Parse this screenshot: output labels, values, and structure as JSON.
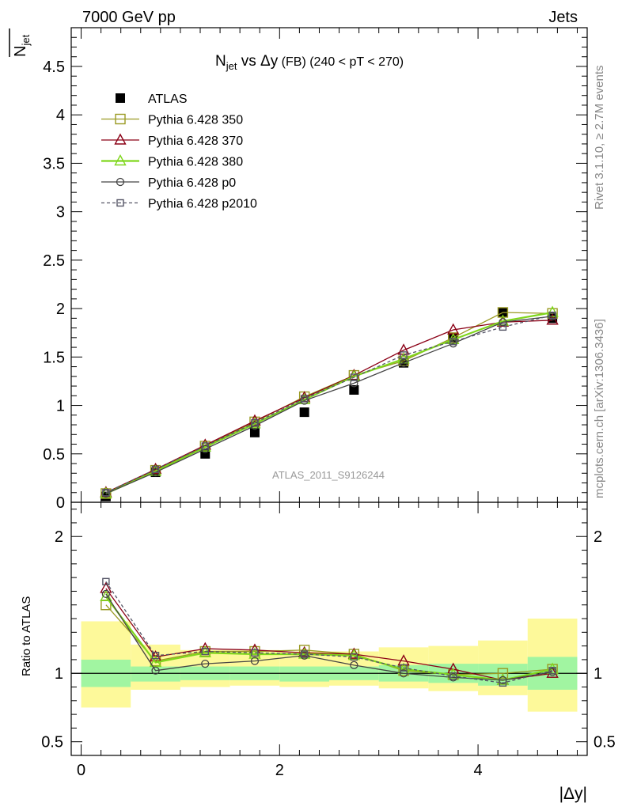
{
  "header": {
    "left": "7000 GeV pp",
    "right": "Jets"
  },
  "side_labels": {
    "top": "Rivet 3.1.10, ≥ 2.7M events",
    "bottom": "mcplots.cern.ch [arXiv:1306.3436]"
  },
  "chart_data": [
    {
      "type": "line",
      "title": {
        "main": "N",
        "sub": "jet",
        "rest": " vs Δy",
        "small": " (FB)",
        "range": " (240 < pT < 270)"
      },
      "ylabel": {
        "main": "N",
        "sub": "jet"
      },
      "watermark": "ATLAS_2011_S9126244",
      "xlim": [
        -0.1,
        5.1
      ],
      "ylim": [
        0,
        4.9
      ],
      "yticks": [
        "0",
        "0.5",
        "1",
        "1.5",
        "2",
        "2.5",
        "3",
        "3.5",
        "4",
        "4.5"
      ],
      "x": [
        0.25,
        0.75,
        1.25,
        1.75,
        2.25,
        2.75,
        3.25,
        3.75,
        4.25,
        4.75
      ],
      "series": [
        {
          "name": "ATLAS",
          "color": "#000000",
          "marker": "filled-square",
          "values": [
            0.06,
            0.31,
            0.5,
            0.72,
            0.93,
            1.16,
            1.44,
            1.7,
            1.96,
            1.9
          ]
        },
        {
          "name": "Pythia 6.428 350",
          "color": "#9a9a22",
          "marker": "open-square",
          "values": [
            0.09,
            0.33,
            0.58,
            0.83,
            1.09,
            1.31,
            1.46,
            1.7,
            1.96,
            1.95
          ]
        },
        {
          "name": "Pythia 6.428 370",
          "color": "#8b0016",
          "marker": "open-triangle",
          "values": [
            0.1,
            0.34,
            0.59,
            0.84,
            1.08,
            1.31,
            1.57,
            1.78,
            1.86,
            1.88
          ]
        },
        {
          "name": "Pythia 6.428 380",
          "color": "#7fd61c",
          "marker": "open-triangle",
          "values": [
            0.09,
            0.32,
            0.57,
            0.81,
            1.06,
            1.3,
            1.48,
            1.68,
            1.87,
            1.96
          ]
        },
        {
          "name": "Pythia 6.428 p0",
          "color": "#444444",
          "marker": "open-circle",
          "values": [
            0.09,
            0.31,
            0.55,
            0.79,
            1.05,
            1.23,
            1.44,
            1.64,
            1.86,
            1.92
          ]
        },
        {
          "name": "Pythia 6.428 p2010",
          "color": "#555566",
          "marker": "open-square-dashed",
          "values": [
            0.1,
            0.34,
            0.58,
            0.82,
            1.07,
            1.29,
            1.52,
            1.66,
            1.81,
            1.93
          ]
        }
      ]
    },
    {
      "type": "line",
      "ylabel": "Ratio to ATLAS",
      "xlabel": "|Δy|",
      "xlim": [
        -0.1,
        5.1
      ],
      "ylim": [
        0.4,
        2.25
      ],
      "yticks": [
        "0.5",
        "1",
        "2"
      ],
      "xticks": [
        "0",
        "2",
        "4"
      ],
      "x": [
        0.25,
        0.75,
        1.25,
        1.75,
        2.25,
        2.75,
        3.25,
        3.75,
        4.25,
        4.75
      ],
      "bands": {
        "inner": [
          [
            0.9,
            1.1
          ],
          [
            0.94,
            1.05
          ],
          [
            0.95,
            1.05
          ],
          [
            0.95,
            1.05
          ],
          [
            0.94,
            1.05
          ],
          [
            0.95,
            1.05
          ],
          [
            0.94,
            1.06
          ],
          [
            0.93,
            1.07
          ],
          [
            0.91,
            1.07
          ],
          [
            0.88,
            1.12
          ]
        ],
        "outer": [
          [
            0.75,
            1.38
          ],
          [
            0.88,
            1.21
          ],
          [
            0.9,
            1.17
          ],
          [
            0.91,
            1.17
          ],
          [
            0.9,
            1.16
          ],
          [
            0.91,
            1.16
          ],
          [
            0.89,
            1.19
          ],
          [
            0.87,
            1.2
          ],
          [
            0.84,
            1.24
          ],
          [
            0.72,
            1.4
          ]
        ]
      },
      "series": [
        {
          "name": "Pythia 6.428 350",
          "color": "#9a9a22",
          "marker": "open-square",
          "values": [
            1.5,
            1.09,
            1.16,
            1.16,
            1.17,
            1.14,
            1.02,
            0.99,
            1.0,
            1.03
          ]
        },
        {
          "name": "Pythia 6.428 370",
          "color": "#8b0016",
          "marker": "open-triangle",
          "values": [
            1.62,
            1.12,
            1.18,
            1.17,
            1.15,
            1.14,
            1.09,
            1.03,
            0.95,
            1.0
          ]
        },
        {
          "name": "Pythia 6.428 380",
          "color": "#7fd61c",
          "marker": "open-triangle",
          "values": [
            1.56,
            1.08,
            1.15,
            1.14,
            1.14,
            1.13,
            1.03,
            0.99,
            0.95,
            1.03
          ]
        },
        {
          "name": "Pythia 6.428 p0",
          "color": "#444444",
          "marker": "open-circle",
          "values": [
            1.58,
            1.02,
            1.07,
            1.09,
            1.13,
            1.06,
            1.0,
            0.97,
            0.95,
            1.01
          ]
        },
        {
          "name": "Pythia 6.428 p2010",
          "color": "#555566",
          "marker": "open-square-dashed",
          "values": [
            1.67,
            1.13,
            1.16,
            1.15,
            1.14,
            1.12,
            1.04,
            0.98,
            0.93,
            1.02
          ]
        }
      ]
    }
  ]
}
